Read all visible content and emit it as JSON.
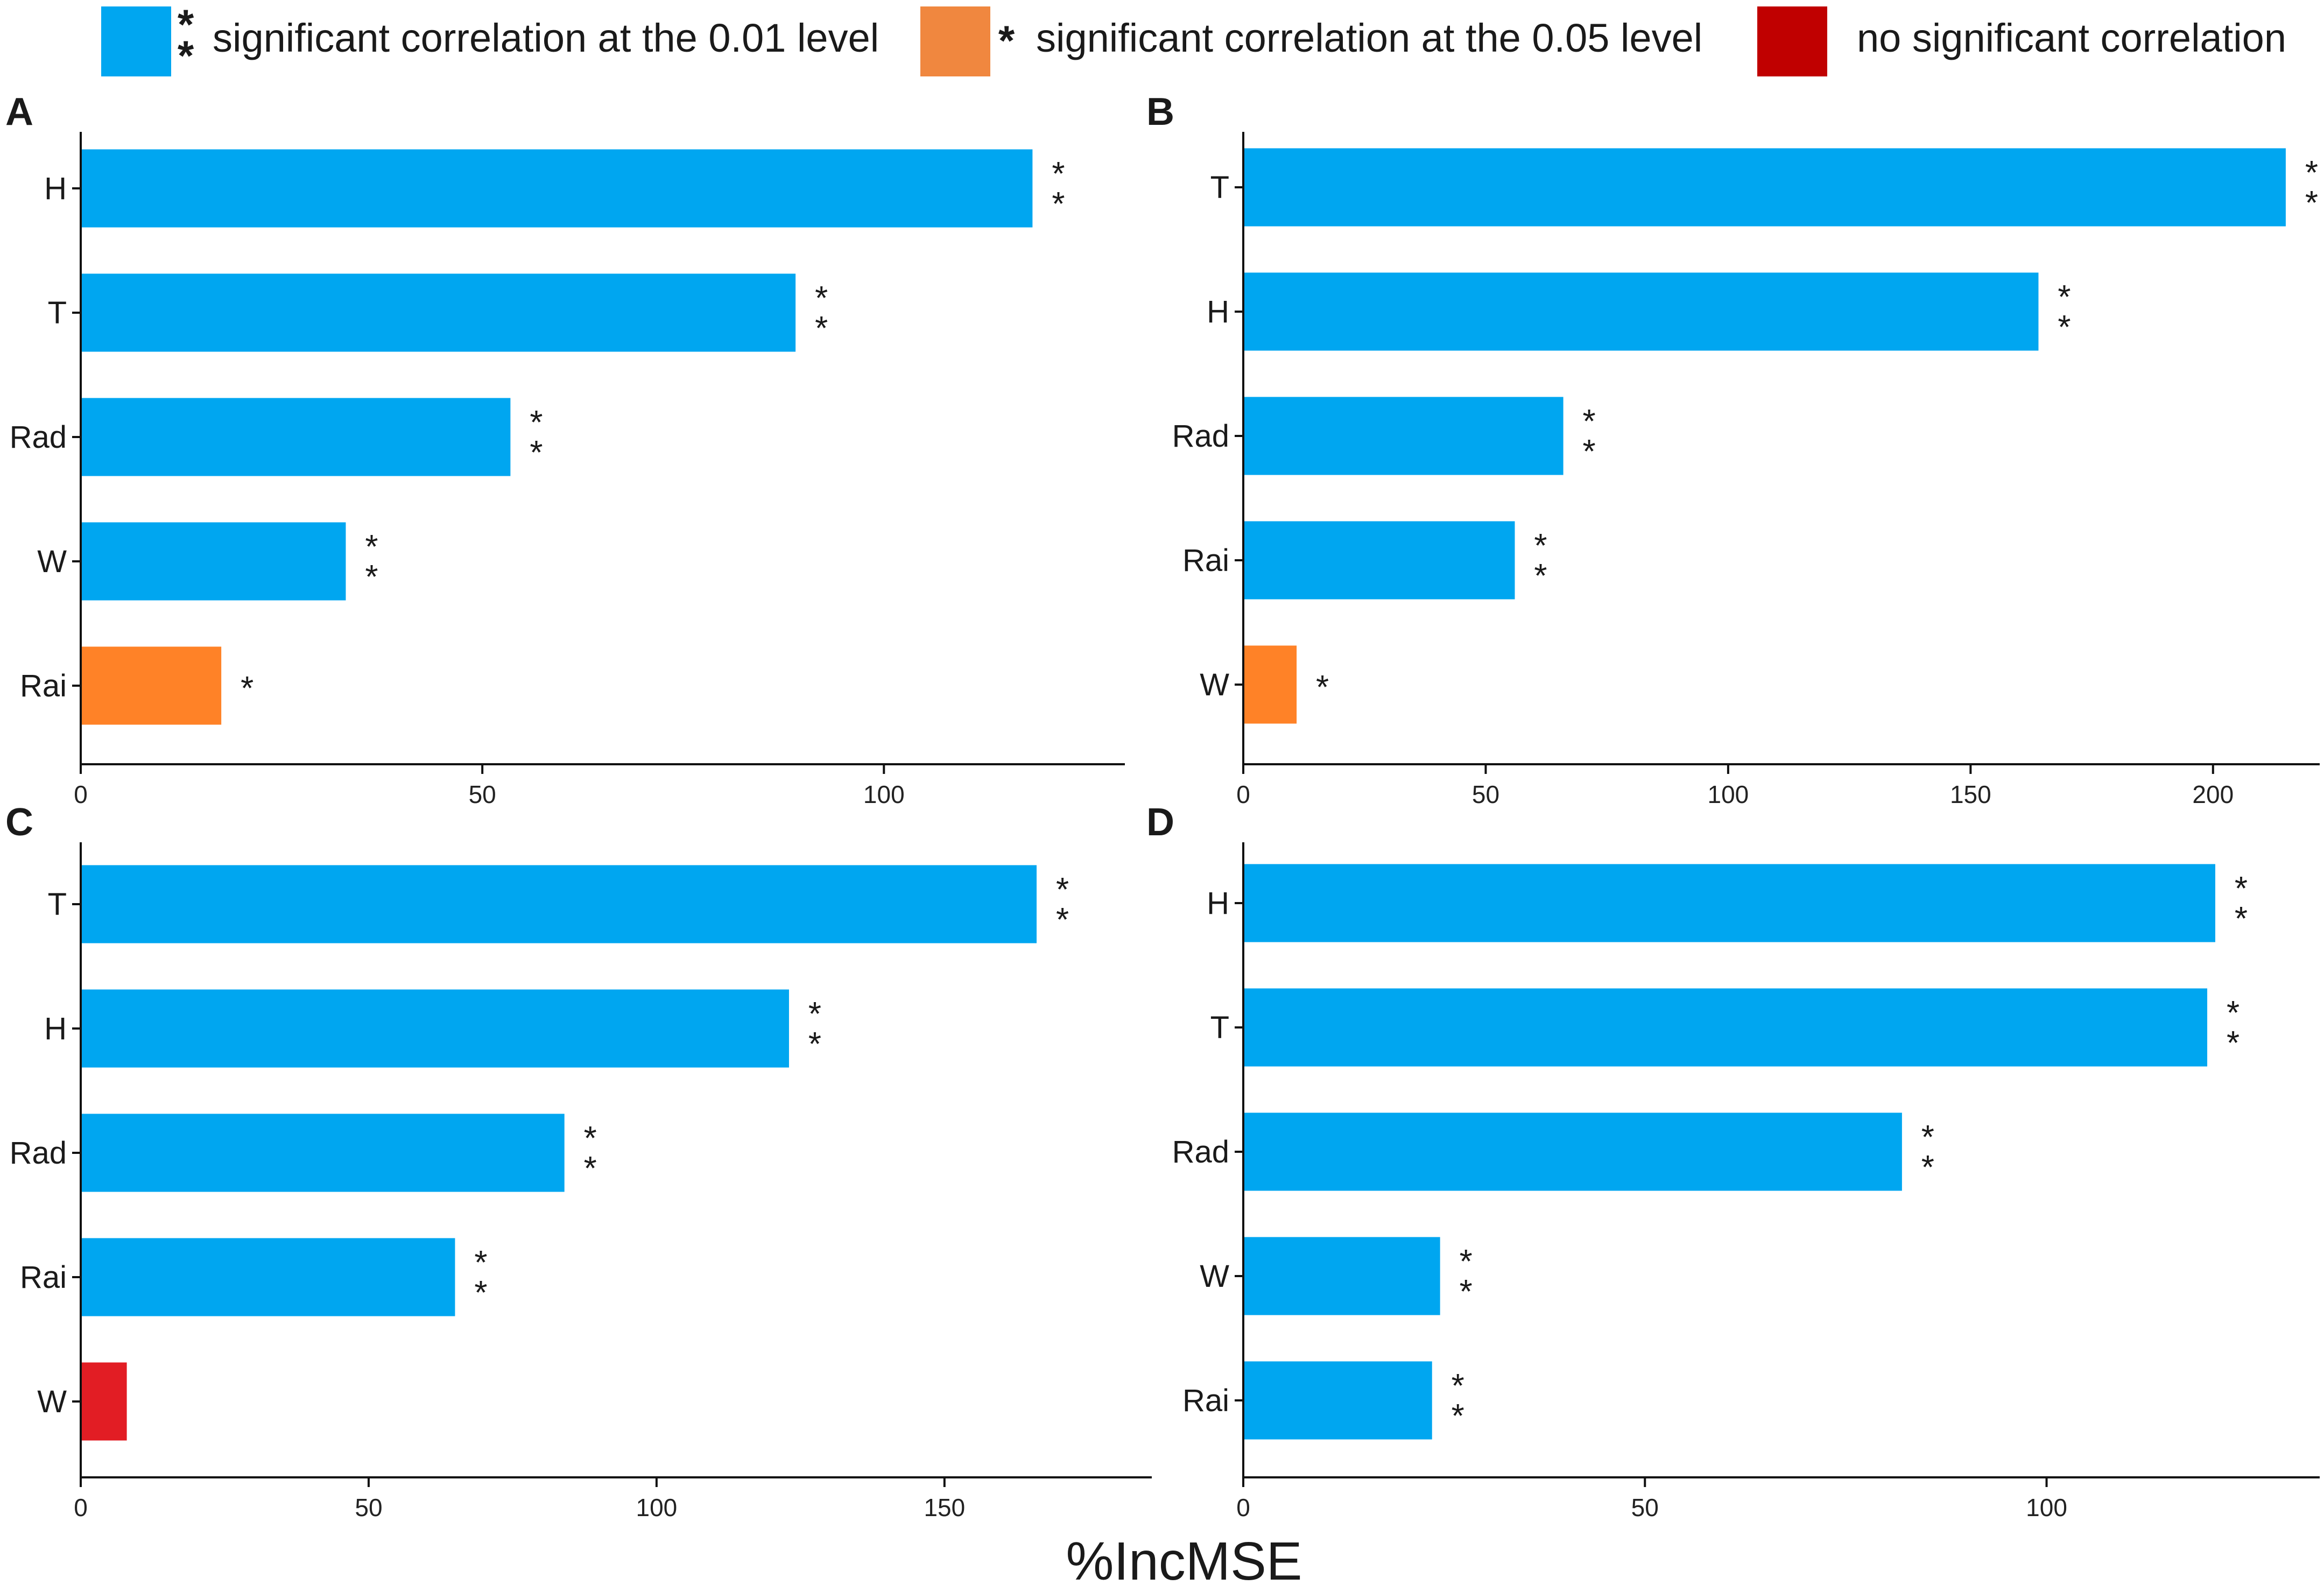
{
  "colors": {
    "sig01": "#00A6F0",
    "sig05": "#FF8227",
    "nosig": "#E21D24",
    "axis": "#111111"
  },
  "legend": [
    {
      "key": "sig01",
      "marker": "*\n*",
      "label": "significant correlation at the 0.01 level",
      "color": "#00A6F0",
      "swatch": "#00A6F0"
    },
    {
      "key": "sig05",
      "marker": "*",
      "label": "significant correlation at the 0.05 level",
      "color": "#FF8227",
      "swatch": "#F0873F"
    },
    {
      "key": "nosig",
      "marker": "",
      "label": "no significant correlation",
      "color": "#E21D24",
      "swatch": "#C00000"
    }
  ],
  "xlabel": "%IncMSE",
  "chart_data": [
    {
      "type": "bar",
      "orientation": "horizontal",
      "panel": "A",
      "categories": [
        "H",
        "T",
        "Rad",
        "W",
        "Rai"
      ],
      "values": [
        118.5,
        89,
        53.5,
        33,
        17.5
      ],
      "significance": [
        "**",
        "**",
        "**",
        "**",
        "*"
      ],
      "xlim": [
        0,
        130
      ],
      "xticks": [
        0,
        50,
        100
      ],
      "xlabel": "%IncMSE"
    },
    {
      "type": "bar",
      "orientation": "horizontal",
      "panel": "B",
      "categories": [
        "T",
        "H",
        "Rad",
        "Rai",
        "W"
      ],
      "values": [
        215,
        164,
        66,
        56,
        11
      ],
      "significance": [
        "**",
        "**",
        "**",
        "**",
        "*"
      ],
      "xlim": [
        0,
        222
      ],
      "xticks": [
        0,
        50,
        100,
        150,
        200
      ],
      "xlabel": "%IncMSE"
    },
    {
      "type": "bar",
      "orientation": "horizontal",
      "panel": "C",
      "categories": [
        "T",
        "H",
        "Rad",
        "Rai",
        "W"
      ],
      "values": [
        166,
        123,
        84,
        65,
        8
      ],
      "significance": [
        "**",
        "**",
        "**",
        "**",
        ""
      ],
      "xlim": [
        0,
        186
      ],
      "xticks": [
        0,
        50,
        100,
        150
      ],
      "xlabel": "%IncMSE"
    },
    {
      "type": "bar",
      "orientation": "horizontal",
      "panel": "D",
      "categories": [
        "H",
        "T",
        "Rad",
        "W",
        "Rai"
      ],
      "values": [
        121,
        120,
        82,
        24.5,
        23.5
      ],
      "significance": [
        "**",
        "**",
        "**",
        "**",
        "**"
      ],
      "xlim": [
        0,
        134
      ],
      "xticks": [
        0,
        50,
        100
      ],
      "xlabel": "%IncMSE"
    }
  ]
}
